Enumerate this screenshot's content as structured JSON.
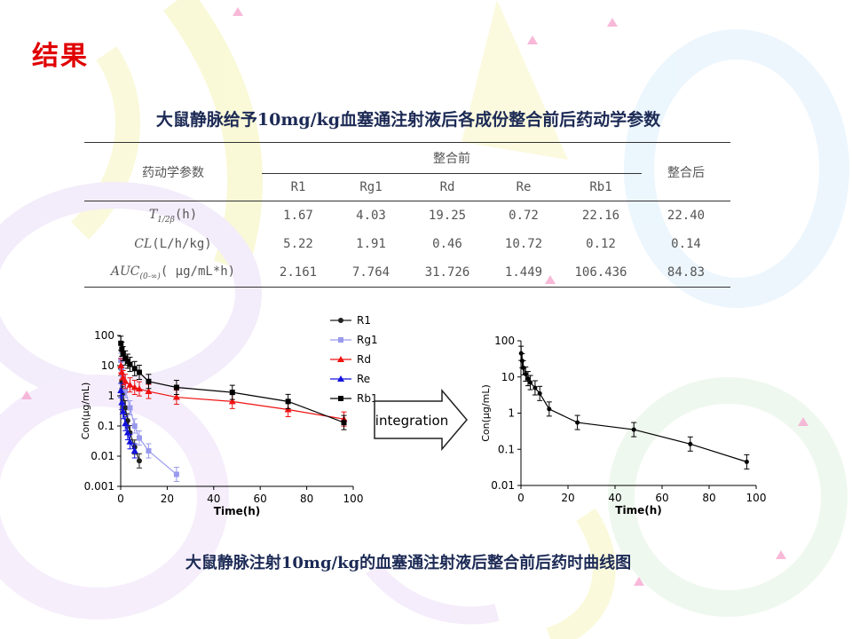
{
  "heading": "结果",
  "table": {
    "title": "大鼠静脉给予10mg/kg血塞通注射液后各成份整合前后药动学参数",
    "param_header": "药动学参数",
    "before_header": "整合前",
    "after_header": "整合后",
    "components": [
      "R1",
      "Rg1",
      "Rd",
      "Re",
      "Rb1"
    ],
    "rows": [
      {
        "param": "T",
        "sub": "1/2β",
        "unit": "(h)",
        "values": [
          "1.67",
          "4.03",
          "19.25",
          "0.72",
          "22.16"
        ],
        "after": "22.40"
      },
      {
        "param": "CL",
        "sub": "",
        "unit": "(L/h/kg)",
        "values": [
          "5.22",
          "1.91",
          "0.46",
          "10.72",
          "0.12"
        ],
        "after": "0.14"
      },
      {
        "param": "AUC",
        "sub": "(0-∞)",
        "unit": "( μg/mL*h)",
        "values": [
          "2.161",
          "7.764",
          "31.726",
          "1.449",
          "106.436"
        ],
        "after": "84.83"
      }
    ]
  },
  "arrow_label": "integration",
  "caption": "大鼠静脉注射10mg/kg的血塞通注射液后整合前后药时曲线图",
  "colors": {
    "heading": "#e00000",
    "title": "#1c2a55",
    "R1": "#222222",
    "Rg1": "#9999ee",
    "Rd": "#ee1111",
    "Re": "#1111dd",
    "Rb1": "#000000"
  },
  "chart_data": [
    {
      "type": "line",
      "xlabel": "Time(h)",
      "ylabel": "Con(μg/mL)",
      "xlim": [
        0,
        100
      ],
      "ylim": [
        0.001,
        100
      ],
      "log_y": true,
      "xticks": [
        "0",
        "20",
        "40",
        "60",
        "80",
        "100"
      ],
      "yticks": [
        "0.001",
        "0.01",
        "0.1",
        "1",
        "10",
        "100"
      ],
      "legend": "top-right",
      "series": [
        {
          "name": "R1",
          "marker": "circle",
          "x": [
            0.08,
            0.5,
            1,
            2,
            3,
            4,
            6,
            8
          ],
          "y": [
            8,
            3,
            1.2,
            0.4,
            0.15,
            0.06,
            0.02,
            0.007
          ]
        },
        {
          "name": "Rg1",
          "marker": "square",
          "x": [
            0.08,
            0.5,
            1,
            2,
            4,
            6,
            8,
            12,
            24
          ],
          "y": [
            15,
            8,
            4,
            1.5,
            0.4,
            0.1,
            0.04,
            0.015,
            0.0025
          ]
        },
        {
          "name": "Rd",
          "marker": "triangle",
          "x": [
            0.08,
            0.5,
            1,
            2,
            4,
            6,
            8,
            12,
            24,
            48,
            72,
            96
          ],
          "y": [
            10,
            6,
            4,
            3,
            2.3,
            1.9,
            1.7,
            1.4,
            0.9,
            0.65,
            0.35,
            0.17
          ]
        },
        {
          "name": "Re",
          "marker": "triangle",
          "x": [
            0.08,
            0.5,
            1,
            2,
            3,
            4,
            6
          ],
          "y": [
            1.5,
            0.6,
            0.3,
            0.12,
            0.06,
            0.03,
            0.015
          ]
        },
        {
          "name": "Rb1",
          "marker": "square",
          "x": [
            0.08,
            0.5,
            1,
            2,
            3,
            4,
            6,
            8,
            12,
            24,
            48,
            72,
            96
          ],
          "y": [
            55,
            35,
            25,
            18,
            14,
            11,
            8,
            6,
            3,
            1.9,
            1.3,
            0.65,
            0.13
          ]
        }
      ]
    },
    {
      "type": "line",
      "xlabel": "Time(h)",
      "ylabel": "Con(μg/mL)",
      "xlim": [
        0,
        100
      ],
      "ylim": [
        0.01,
        100
      ],
      "log_y": true,
      "xticks": [
        "0",
        "20",
        "40",
        "60",
        "80",
        "100"
      ],
      "yticks": [
        "0.01",
        "0.1",
        "1",
        "10",
        "100"
      ],
      "series": [
        {
          "name": "",
          "marker": "dot",
          "x": [
            0.08,
            0.5,
            1,
            2,
            3,
            4,
            6,
            8,
            12,
            24,
            48,
            72,
            96
          ],
          "y": [
            45,
            28,
            18,
            12,
            9,
            7,
            5,
            3.5,
            1.3,
            0.55,
            0.35,
            0.14,
            0.045
          ]
        }
      ]
    }
  ]
}
